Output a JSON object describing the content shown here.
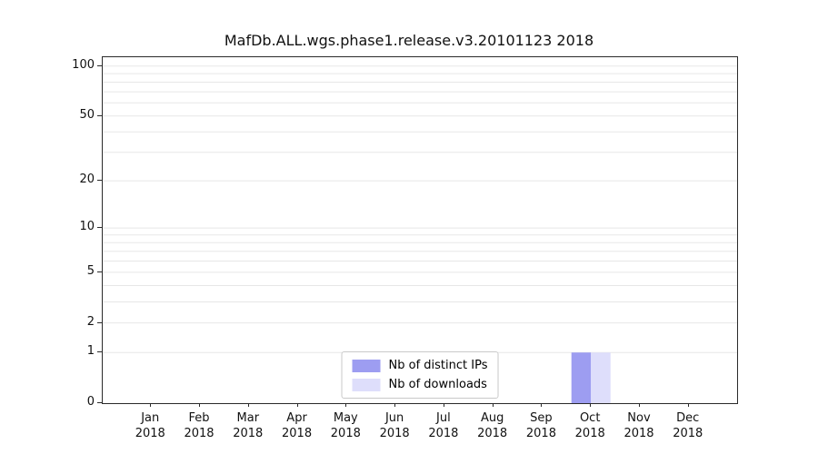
{
  "chart_data": {
    "type": "bar",
    "title": "MafDb.ALL.wgs.phase1.release.v3.20101123 2018",
    "categories": [
      "Jan",
      "Feb",
      "Mar",
      "Apr",
      "May",
      "Jun",
      "Jul",
      "Aug",
      "Sep",
      "Oct",
      "Nov",
      "Dec"
    ],
    "xtick_sublabel": "2018",
    "series": [
      {
        "name": "Nb of distinct IPs",
        "color": "#9d9df1",
        "values": [
          0,
          0,
          0,
          0,
          0,
          0,
          0,
          0,
          0,
          1,
          0,
          0
        ]
      },
      {
        "name": "Nb of downloads",
        "color": "#dedefb",
        "values": [
          0,
          0,
          0,
          0,
          0,
          0,
          0,
          0,
          0,
          1,
          0,
          0
        ]
      }
    ],
    "yscale": "log1p",
    "ylim": [
      0,
      113
    ],
    "yticks": [
      0,
      1,
      2,
      5,
      10,
      20,
      50,
      100
    ],
    "grid_values": [
      1,
      2,
      3,
      4,
      5,
      6,
      7,
      8,
      9,
      10,
      20,
      30,
      40,
      50,
      60,
      70,
      80,
      90,
      100
    ],
    "grid": "horizontal",
    "legend_position": "bottom-center"
  },
  "colors": {
    "grid": "#e7e7e7",
    "axis": "#2a2a2a",
    "background": "#ffffff"
  }
}
